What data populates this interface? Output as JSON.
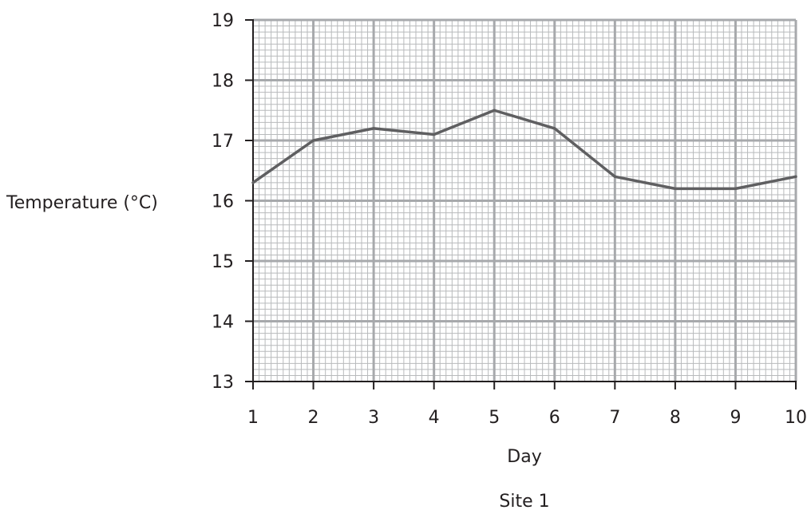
{
  "chart_data": {
    "type": "line",
    "title": "Site 1",
    "xlabel": "Day",
    "ylabel": "Temperature (°C)",
    "x": [
      1,
      2,
      3,
      4,
      5,
      6,
      7,
      8,
      9,
      10
    ],
    "series": [
      {
        "values": [
          16.3,
          17.0,
          17.2,
          17.1,
          17.5,
          17.2,
          16.4,
          16.2,
          16.2,
          16.4
        ]
      }
    ],
    "xlim": [
      1,
      10
    ],
    "ylim": [
      13,
      19
    ],
    "x_ticks": [
      "1",
      "2",
      "3",
      "4",
      "5",
      "6",
      "7",
      "8",
      "9",
      "10"
    ],
    "y_ticks": [
      "13",
      "14",
      "15",
      "16",
      "17",
      "18",
      "19"
    ],
    "grid": true,
    "colors": {
      "line": "#5f5f61",
      "major_grid": "#a7a9ac",
      "minor_grid": "#b8babc",
      "axis": "#231f20"
    }
  }
}
